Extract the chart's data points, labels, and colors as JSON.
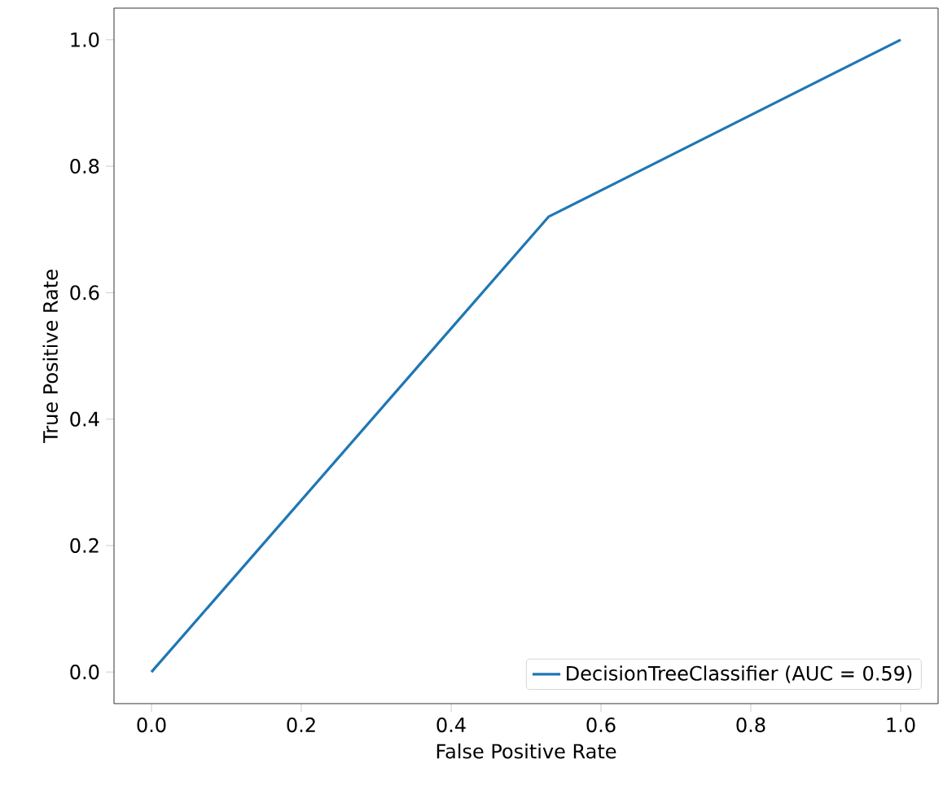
{
  "chart_data": {
    "type": "line",
    "xlabel": "False Positive Rate",
    "ylabel": "True Positive Rate",
    "x": [
      0,
      0.53,
      1
    ],
    "series": [
      {
        "name": "DecisionTreeClassifier (AUC = 0.59)",
        "color": "#1f77b4",
        "values": [
          0,
          0.72,
          1
        ]
      }
    ],
    "xlim": [
      -0.05,
      1.05
    ],
    "ylim": [
      -0.05,
      1.05
    ],
    "xticks": [
      {
        "value": 0,
        "label": "0.0"
      },
      {
        "value": 0.2,
        "label": "0.2"
      },
      {
        "value": 0.4,
        "label": "0.4"
      },
      {
        "value": 0.6,
        "label": "0.6"
      },
      {
        "value": 0.8,
        "label": "0.8"
      },
      {
        "value": 1,
        "label": "1.0"
      }
    ],
    "yticks": [
      {
        "value": 0,
        "label": "0.0"
      },
      {
        "value": 0.2,
        "label": "0.2"
      },
      {
        "value": 0.4,
        "label": "0.4"
      },
      {
        "value": 0.6,
        "label": "0.6"
      },
      {
        "value": 0.8,
        "label": "0.8"
      },
      {
        "value": 1,
        "label": "1.0"
      }
    ],
    "grid": false,
    "legend": "bottom right",
    "marker": "none",
    "line_style": "solid"
  }
}
